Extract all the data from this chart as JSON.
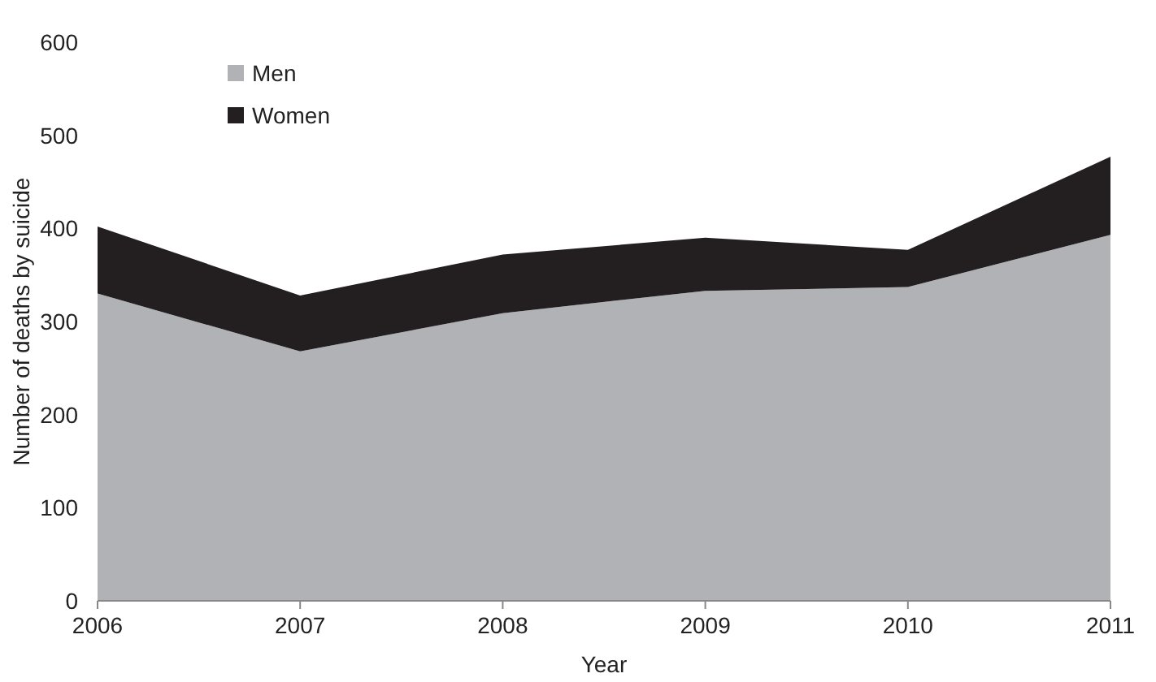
{
  "chart_data": {
    "type": "area",
    "stacked": true,
    "xlabel": "Year",
    "ylabel": "Number of deaths by suicide",
    "x": [
      2006,
      2007,
      2008,
      2009,
      2010,
      2011
    ],
    "series": [
      {
        "name": "Men",
        "color": "#b1b2b6",
        "values": [
          330,
          268,
          309,
          333,
          337,
          393
        ]
      },
      {
        "name": "Women",
        "color": "#231f20",
        "values": [
          72,
          60,
          63,
          57,
          40,
          84
        ]
      }
    ],
    "xlim": [
      2006,
      2011
    ],
    "xticks": [
      2006,
      2007,
      2008,
      2009,
      2010,
      2011
    ],
    "ylim": [
      0,
      600
    ],
    "yticks": [
      0,
      100,
      200,
      300,
      400,
      500,
      600
    ],
    "grid": false,
    "legend": "top left"
  }
}
